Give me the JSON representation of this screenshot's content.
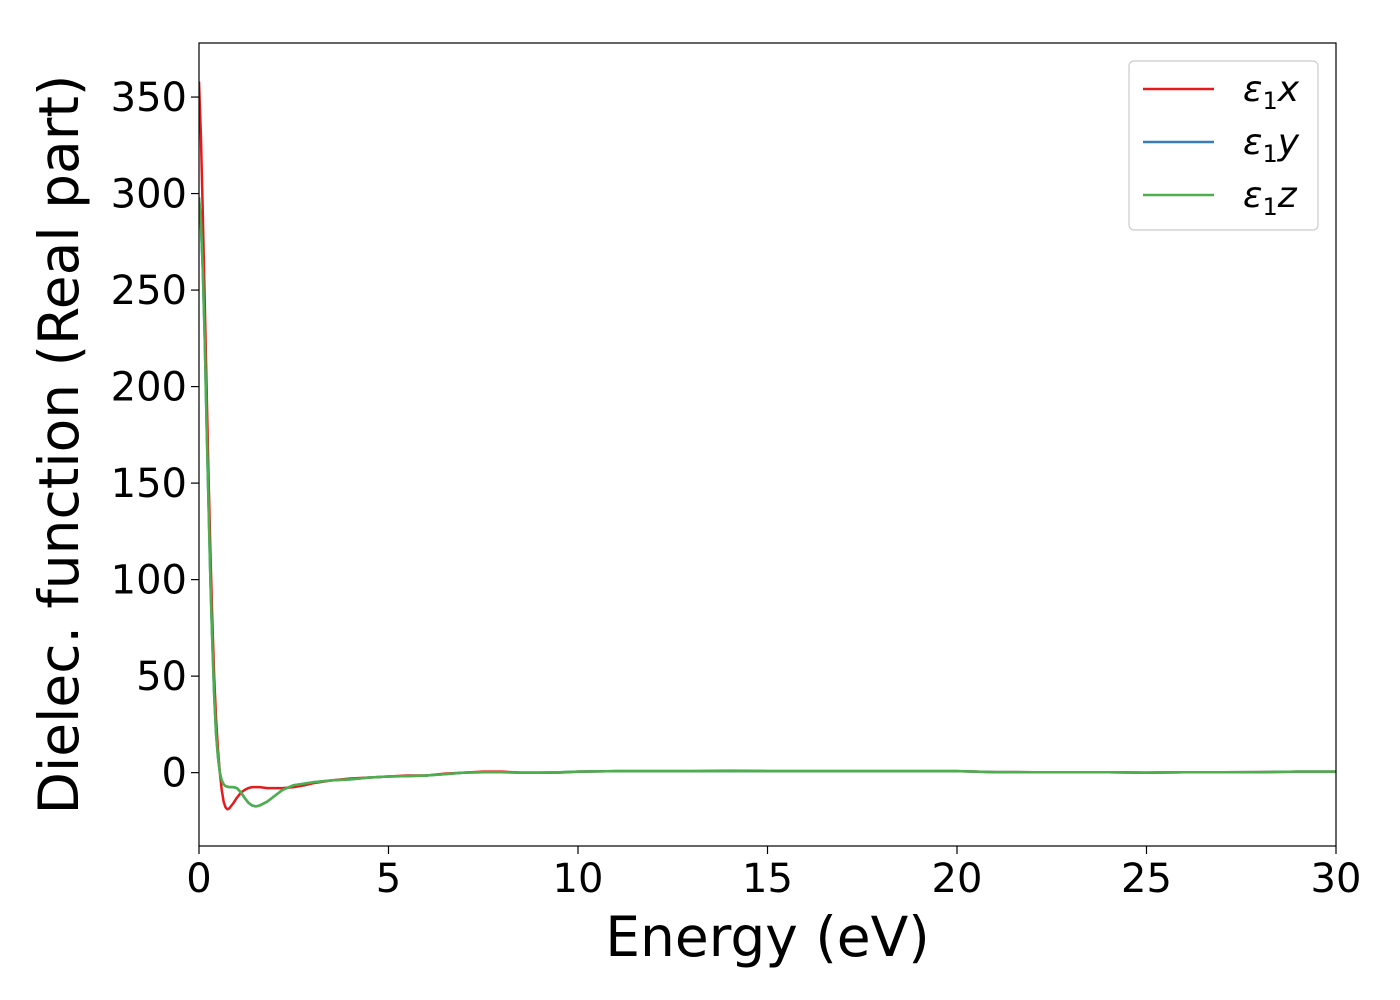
{
  "chart_data": {
    "type": "line",
    "title": "",
    "xlabel": "Energy (eV)",
    "ylabel": "Dielec. function (Real part)",
    "xlim": [
      0,
      30
    ],
    "ylim": [
      -38,
      378
    ],
    "xticks": [
      0,
      5,
      10,
      15,
      20,
      25,
      30
    ],
    "xtick_labels": [
      "0",
      "5",
      "10",
      "15",
      "20",
      "25",
      "30"
    ],
    "yticks": [
      0,
      50,
      100,
      150,
      200,
      250,
      300,
      350
    ],
    "ytick_labels": [
      "0",
      "50",
      "100",
      "150",
      "200",
      "250",
      "300",
      "350"
    ],
    "grid": false,
    "legend_position": "top-right",
    "series": [
      {
        "name": "ε1x",
        "symbol": "ε",
        "subscript": "1",
        "suffix": "x",
        "color": "#e41a1c",
        "x": [
          0,
          0.05,
          0.1,
          0.15,
          0.2,
          0.25,
          0.3,
          0.35,
          0.4,
          0.45,
          0.5,
          0.55,
          0.6,
          0.65,
          0.7,
          0.75,
          0.8,
          0.9,
          1.0,
          1.1,
          1.2,
          1.3,
          1.4,
          1.6,
          1.8,
          2.0,
          2.2,
          2.5,
          2.8,
          3.0,
          3.5,
          4.0,
          4.5,
          5.0,
          5.5,
          6.0,
          6.5,
          7.0,
          7.5,
          8.0,
          8.5,
          9.0,
          9.5,
          10.0,
          11,
          12,
          13,
          14,
          15,
          16,
          17,
          18,
          19,
          20,
          20.5,
          21,
          22,
          23,
          24,
          25,
          26,
          27,
          28,
          29,
          30
        ],
        "y": [
          358,
          330,
          290,
          245,
          200,
          155,
          115,
          80,
          50,
          28,
          12,
          0,
          -9,
          -15,
          -18,
          -19,
          -18.5,
          -16,
          -13,
          -10.5,
          -9,
          -8,
          -7.5,
          -7.5,
          -8,
          -8,
          -8,
          -7.5,
          -6.5,
          -5.5,
          -4,
          -3,
          -2.5,
          -2,
          -1.5,
          -1.5,
          -0.5,
          0,
          0.5,
          0.5,
          0,
          0,
          0,
          0.5,
          0.8,
          0.8,
          0.8,
          1.0,
          0.8,
          0.8,
          0.8,
          0.8,
          0.8,
          0.8,
          0.5,
          0.3,
          0.2,
          0.2,
          0.2,
          0,
          0.2,
          0.2,
          0.3,
          0.5,
          0.5
        ]
      },
      {
        "name": "ε1y",
        "symbol": "ε",
        "subscript": "1",
        "suffix": "y",
        "color": "#377eb8",
        "x": [
          0,
          0.05,
          0.1,
          0.15,
          0.2,
          0.25,
          0.3,
          0.35,
          0.4,
          0.45,
          0.5,
          0.55,
          0.6,
          0.65,
          0.7,
          0.8,
          0.9,
          1.0,
          1.1,
          1.2,
          1.3,
          1.4,
          1.5,
          1.6,
          1.8,
          2.0,
          2.2,
          2.5,
          3.0,
          3.5,
          4.0,
          4.5,
          5.0,
          5.5,
          6.0,
          6.5,
          7.0,
          7.5,
          8.0,
          8.5,
          9.0,
          9.5,
          10.0,
          11,
          12,
          13,
          14,
          15,
          16,
          17,
          18,
          19,
          20,
          20.5,
          21,
          22,
          23,
          24,
          25,
          26,
          27,
          28,
          29,
          30
        ],
        "y": [
          298,
          285,
          260,
          225,
          180,
          140,
          100,
          68,
          40,
          20,
          8,
          0,
          -4,
          -6,
          -7,
          -7.5,
          -7.5,
          -8,
          -10,
          -13,
          -15.5,
          -17,
          -17.5,
          -17,
          -15,
          -12,
          -9,
          -6.5,
          -5,
          -4,
          -3.5,
          -2.5,
          -2,
          -1.8,
          -1.5,
          -0.8,
          0,
          0.2,
          0.2,
          0,
          0,
          0.2,
          0.5,
          0.8,
          0.8,
          0.8,
          0.8,
          0.8,
          0.8,
          0.8,
          0.8,
          0.8,
          0.8,
          0.5,
          0.3,
          0.2,
          0.2,
          0.2,
          0,
          0.2,
          0.2,
          0.3,
          0.5,
          0.5
        ]
      },
      {
        "name": "ε1z",
        "symbol": "ε",
        "subscript": "1",
        "suffix": "z",
        "color": "#4daf4a",
        "x": [
          0,
          0.05,
          0.1,
          0.15,
          0.2,
          0.25,
          0.3,
          0.35,
          0.4,
          0.45,
          0.5,
          0.55,
          0.6,
          0.65,
          0.7,
          0.8,
          0.9,
          1.0,
          1.1,
          1.2,
          1.3,
          1.4,
          1.5,
          1.6,
          1.8,
          2.0,
          2.2,
          2.5,
          3.0,
          3.5,
          4.0,
          4.5,
          5.0,
          5.5,
          6.0,
          6.5,
          7.0,
          7.5,
          8.0,
          8.5,
          9.0,
          9.5,
          10.0,
          11,
          12,
          13,
          14,
          15,
          16,
          17,
          18,
          19,
          20,
          20.5,
          21,
          22,
          23,
          24,
          25,
          26,
          27,
          28,
          29,
          30
        ],
        "y": [
          298,
          285,
          260,
          225,
          180,
          140,
          100,
          68,
          40,
          20,
          8,
          0,
          -4,
          -6,
          -7,
          -7.5,
          -7.5,
          -8,
          -10,
          -13,
          -15.5,
          -17,
          -17.5,
          -17,
          -15,
          -12,
          -9,
          -6.5,
          -5,
          -4,
          -3.5,
          -2.5,
          -2,
          -1.8,
          -1.5,
          -0.8,
          0,
          0.2,
          0.2,
          0,
          0,
          0.2,
          0.5,
          0.8,
          0.8,
          0.8,
          0.8,
          0.8,
          0.8,
          0.8,
          0.8,
          0.8,
          0.8,
          0.5,
          0.3,
          0.2,
          0.2,
          0.2,
          0,
          0.2,
          0.2,
          0.3,
          0.5,
          0.5
        ]
      }
    ]
  }
}
